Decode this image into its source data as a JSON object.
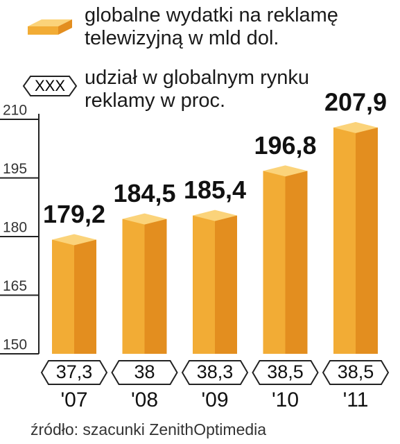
{
  "chart_data": {
    "type": "bar",
    "categories": [
      "'07",
      "'08",
      "'09",
      "'10",
      "'11"
    ],
    "series": [
      {
        "name": "globalne wydatki na reklamę telewizyjną w mld dol.",
        "color": "#f2ac35",
        "values": [
          179.2,
          184.5,
          185.4,
          196.8,
          207.9
        ],
        "value_labels": [
          "179,2",
          "184,5",
          "185,4",
          "196,8",
          "207,9"
        ]
      }
    ],
    "share_series": {
      "name": "udział w globalnym rynku reklamy w proc.",
      "legend_symbol": "XXX",
      "values": [
        37.3,
        38,
        38.3,
        38.5,
        38.5
      ],
      "value_labels": [
        "37,3",
        "38",
        "38,3",
        "38,5",
        "38,5"
      ]
    },
    "ylim": [
      150,
      210
    ],
    "yticks": [
      150,
      165,
      180,
      195,
      210
    ],
    "source": "źródło: szacunki ZenithOptimedia"
  }
}
